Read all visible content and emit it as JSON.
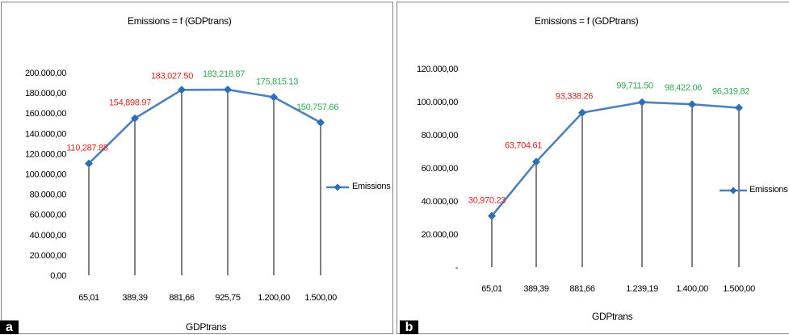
{
  "panels": [
    {
      "letter": "a",
      "title": "Emissions = f (GDPtrans)",
      "legend_label": "Emissions"
    },
    {
      "letter": "b",
      "title": "Emissions = f (GDPtrans)",
      "legend_label": "Emissions"
    }
  ],
  "colors": {
    "series_line": "#4f81bd",
    "marker": "#2e6eb5",
    "label_red": "#d9261c",
    "label_green": "#2fa84f",
    "droplines": "#000000"
  },
  "chart_data": [
    {
      "type": "line",
      "title": "Emissions = f (GDPtrans)",
      "xlabel": "GDPtrans",
      "ylabel": "",
      "categories": [
        "65,01",
        "389,39",
        "881,66",
        "925,75",
        "1.200,00",
        "1.500,00"
      ],
      "series": [
        {
          "name": "Emissions",
          "values": [
            110287.88,
            154898.97,
            183027.5,
            183218.87,
            175815.13,
            150757.66
          ],
          "data_labels": [
            "110,287.88",
            "154,898.97",
            "183,027.50",
            "183,218.87",
            "175,815.13",
            "150,757.66"
          ],
          "label_colors": [
            "red",
            "red",
            "red",
            "green",
            "green",
            "green"
          ]
        }
      ],
      "ylim": [
        0,
        200000
      ],
      "yticks": [
        0,
        20000,
        40000,
        60000,
        80000,
        100000,
        120000,
        140000,
        160000,
        180000,
        200000
      ],
      "ytick_labels": [
        "0,00",
        "20.000,00",
        "40.000,00",
        "60.000,00",
        "80.000,00",
        "100.000,00",
        "120.000,00",
        "140.000,00",
        "160.000,00",
        "180.000,00",
        "200.000,00"
      ],
      "drop_lines": true,
      "grid": false,
      "legend": "right"
    },
    {
      "type": "line",
      "title": "Emissions = f (GDPtrans)",
      "xlabel": "GDPtrans",
      "ylabel": "",
      "categories": [
        "65,01",
        "389,39",
        "881,66",
        "1.239,19",
        "1.400,00",
        "1.500,00"
      ],
      "series": [
        {
          "name": "Emissions",
          "values": [
            30970.23,
            63704.61,
            93338.26,
            99711.5,
            98422.06,
            96319.82
          ],
          "data_labels": [
            "30,970.23",
            "63,704.61",
            "93,338.26",
            "99,711.50",
            "98,422.06",
            "96,319.82"
          ],
          "label_colors": [
            "red",
            "red",
            "red",
            "green",
            "green",
            "green"
          ]
        }
      ],
      "ylim": [
        0,
        120000
      ],
      "yticks": [
        0,
        20000,
        40000,
        60000,
        80000,
        100000,
        120000
      ],
      "ytick_labels": [
        "-",
        "20.000,00",
        "40.000,00",
        "60.000,00",
        "80.000,00",
        "100.000,00",
        "120.000,00"
      ],
      "drop_lines": true,
      "grid": false,
      "legend": "right"
    }
  ]
}
